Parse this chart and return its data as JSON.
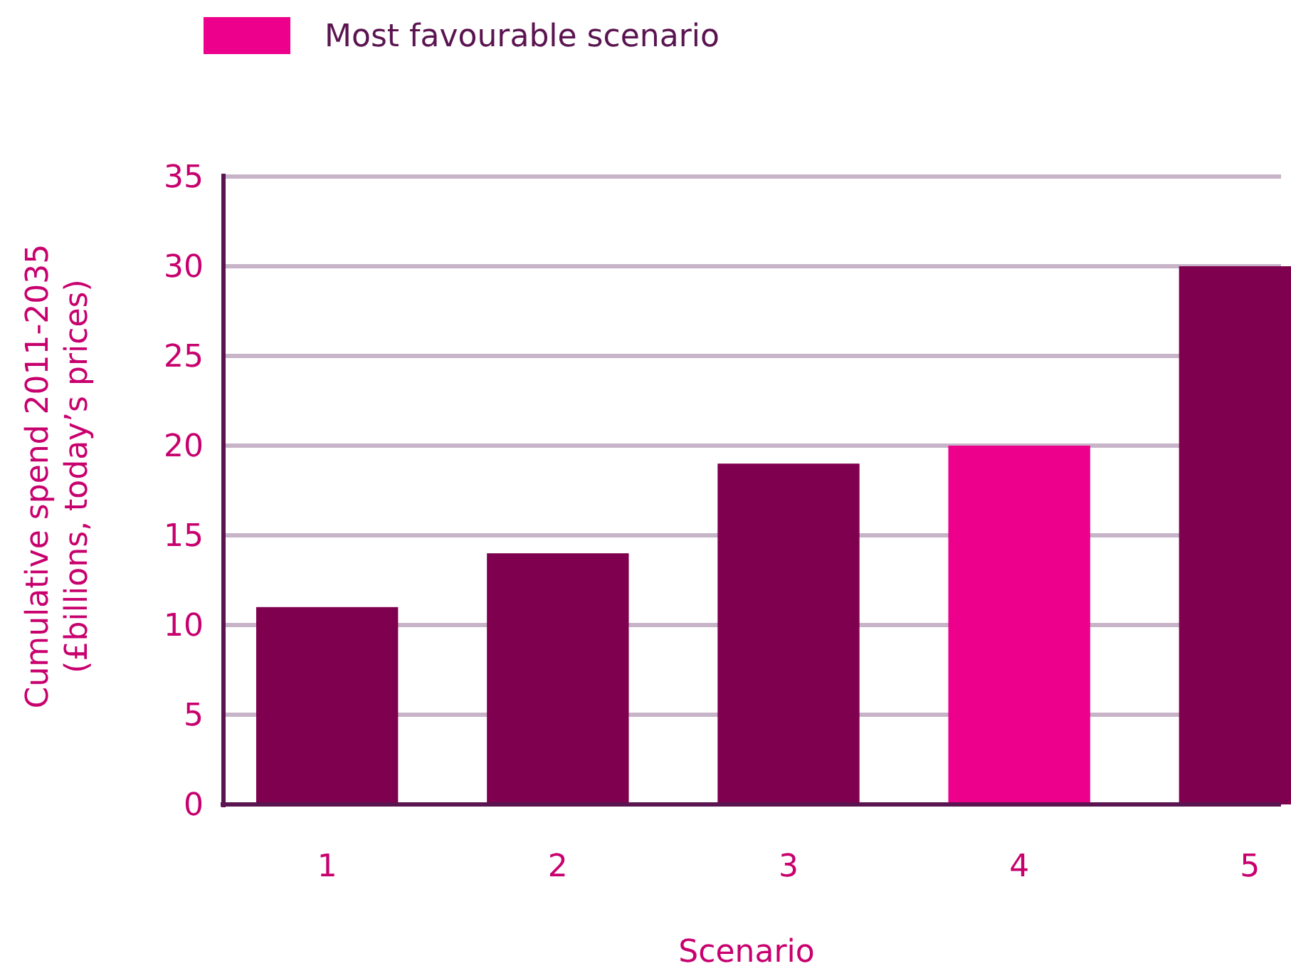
{
  "chart_data": {
    "type": "bar",
    "xlabel": "Scenario",
    "ylabel": "Cumulative spend 2011-2035\n(£billions, today’s prices)",
    "categories": [
      "1",
      "2",
      "3",
      "4",
      "5"
    ],
    "stacked": true,
    "series": [
      {
        "color": "#800050",
        "values": [
          11,
          14,
          19,
          null,
          30
        ]
      },
      {
        "name": "Most favourable scenario",
        "color": "#ec008c",
        "values": [
          null,
          null,
          null,
          20,
          null
        ]
      }
    ],
    "ylim": [
      0,
      35
    ],
    "yticks": [
      0,
      5,
      10,
      15,
      20,
      25,
      30,
      35
    ],
    "grid": "y",
    "legend": "top left"
  }
}
